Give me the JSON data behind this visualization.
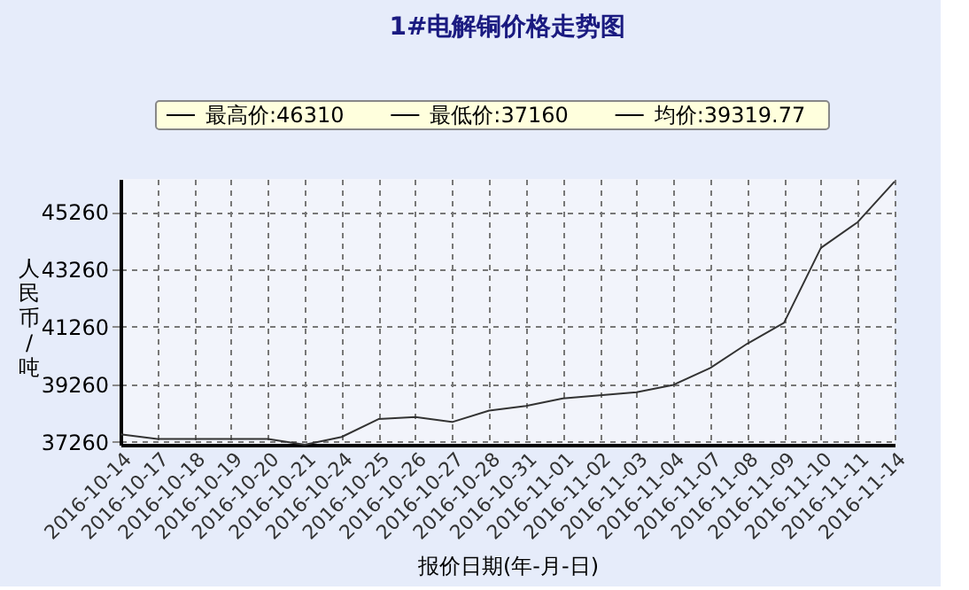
{
  "chart_data": {
    "type": "line",
    "title": "1#电解铜价格走势图",
    "xlabel": "报价日期(年-月-日)",
    "ylabel": "人民币/吨",
    "annotations": [
      "最高价:46310",
      "最低价:37160",
      "均价:39319.77"
    ],
    "categories": [
      "2016-10-14",
      "2016-10-17",
      "2016-10-18",
      "2016-10-19",
      "2016-10-20",
      "2016-10-21",
      "2016-10-24",
      "2016-10-25",
      "2016-10-26",
      "2016-10-27",
      "2016-10-28",
      "2016-10-31",
      "2016-11-01",
      "2016-11-02",
      "2016-11-03",
      "2016-11-04",
      "2016-11-07",
      "2016-11-08",
      "2016-11-09",
      "2016-11-10",
      "2016-11-11",
      "2016-11-14"
    ],
    "series": [
      {
        "color": "#333333",
        "values": [
          37520,
          37360,
          37360,
          37360,
          37360,
          37160,
          37430,
          38050,
          38120,
          37950,
          38345,
          38510,
          38770,
          38880,
          38985,
          39240,
          39830,
          40670,
          41400,
          44000,
          44900,
          46310
        ]
      }
    ],
    "ylim": [
      37160,
      46400
    ],
    "yticks": [
      37260,
      39260,
      41260,
      43260,
      45260
    ],
    "grid": true,
    "marker": "none",
    "line_style": "solid"
  }
}
